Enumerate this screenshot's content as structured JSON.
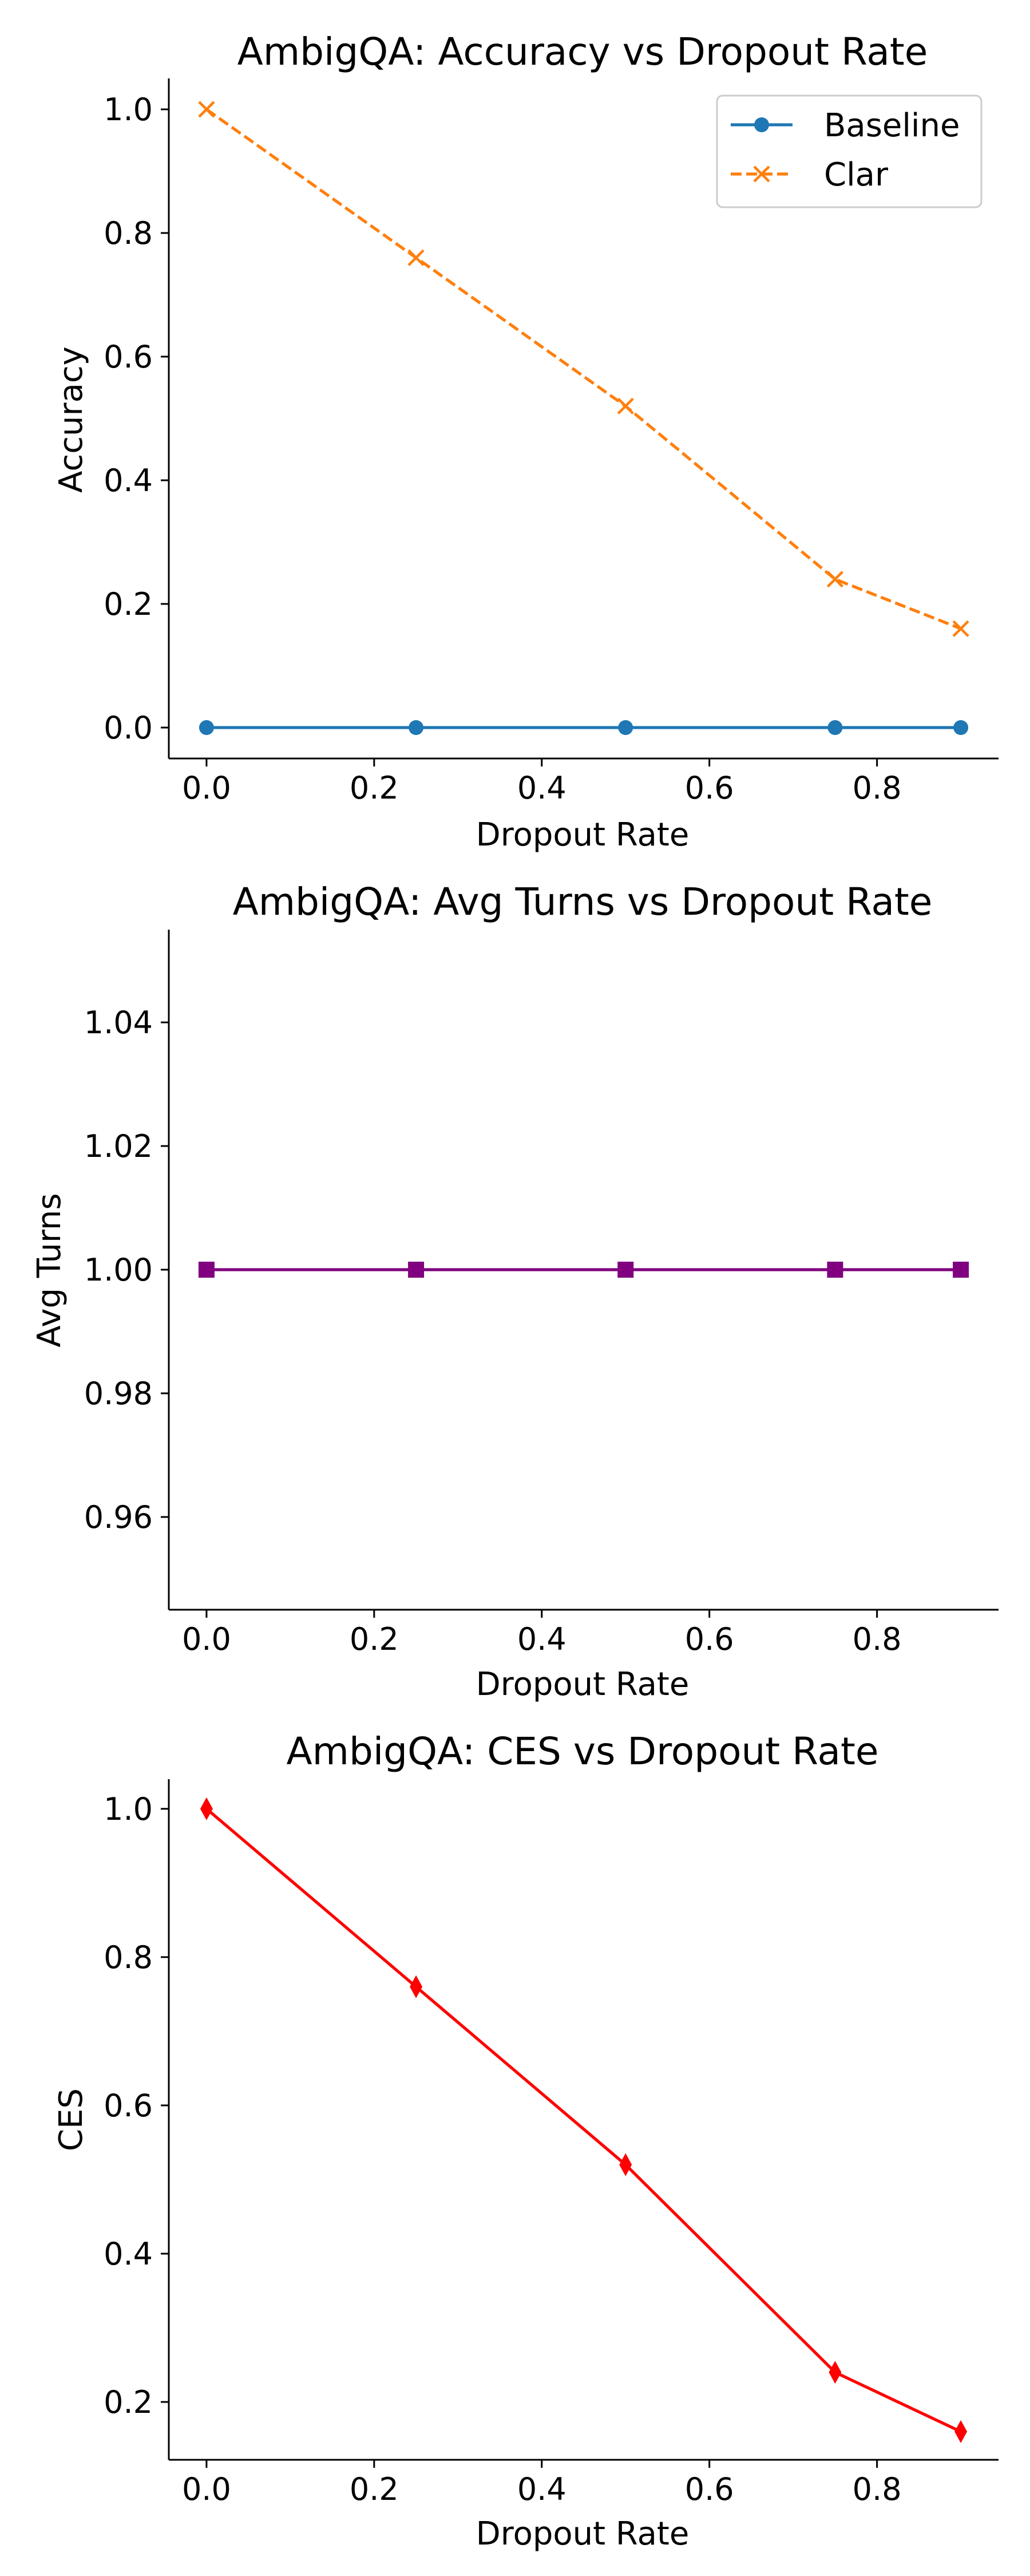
{
  "chart_data": [
    {
      "type": "line",
      "title": "AmbigQA: Accuracy vs Dropout Rate",
      "xlabel": "Dropout Rate",
      "ylabel": "Accuracy",
      "x": [
        0.0,
        0.25,
        0.5,
        0.75,
        0.9
      ],
      "xlim": [
        -0.045,
        0.945
      ],
      "ylim": [
        -0.05,
        1.05
      ],
      "xticks": [
        0.0,
        0.2,
        0.4,
        0.6,
        0.8
      ],
      "xtick_labels": [
        "0.0",
        "0.2",
        "0.4",
        "0.6",
        "0.8"
      ],
      "yticks": [
        0.0,
        0.2,
        0.4,
        0.6,
        0.8,
        1.0
      ],
      "ytick_labels": [
        "0.0",
        "0.2",
        "0.4",
        "0.6",
        "0.8",
        "1.0"
      ],
      "grid": false,
      "legend": "top-right",
      "series": [
        {
          "name": "Baseline",
          "values": [
            0.0,
            0.0,
            0.0,
            0.0,
            0.0
          ],
          "color": "#1f77b4",
          "marker": "circle",
          "linestyle": "solid"
        },
        {
          "name": "Clar",
          "values": [
            1.0,
            0.76,
            0.52,
            0.24,
            0.16
          ],
          "color": "#ff7f0e",
          "marker": "x",
          "linestyle": "dashed"
        }
      ]
    },
    {
      "type": "line",
      "title": "AmbigQA: Avg Turns vs Dropout Rate",
      "xlabel": "Dropout Rate",
      "ylabel": "Avg Turns",
      "x": [
        0.0,
        0.25,
        0.5,
        0.75,
        0.9
      ],
      "xlim": [
        -0.045,
        0.945
      ],
      "ylim": [
        0.945,
        1.055
      ],
      "xticks": [
        0.0,
        0.2,
        0.4,
        0.6,
        0.8
      ],
      "xtick_labels": [
        "0.0",
        "0.2",
        "0.4",
        "0.6",
        "0.8"
      ],
      "yticks": [
        0.96,
        0.98,
        1.0,
        1.02,
        1.04
      ],
      "ytick_labels": [
        "0.96",
        "0.98",
        "1.00",
        "1.02",
        "1.04"
      ],
      "grid": false,
      "series": [
        {
          "values": [
            1.0,
            1.0,
            1.0,
            1.0,
            1.0
          ],
          "color": "#800080",
          "marker": "square",
          "linestyle": "solid"
        }
      ]
    },
    {
      "type": "line",
      "title": "AmbigQA: CES vs Dropout Rate",
      "xlabel": "Dropout Rate",
      "ylabel": "CES",
      "x": [
        0.0,
        0.25,
        0.5,
        0.75,
        0.9
      ],
      "xlim": [
        -0.045,
        0.945
      ],
      "ylim": [
        0.122,
        1.04
      ],
      "xticks": [
        0.0,
        0.2,
        0.4,
        0.6,
        0.8
      ],
      "xtick_labels": [
        "0.0",
        "0.2",
        "0.4",
        "0.6",
        "0.8"
      ],
      "yticks": [
        0.2,
        0.4,
        0.6,
        0.8,
        1.0
      ],
      "ytick_labels": [
        "0.2",
        "0.4",
        "0.6",
        "0.8",
        "1.0"
      ],
      "grid": false,
      "series": [
        {
          "values": [
            1.0,
            0.76,
            0.52,
            0.24,
            0.16
          ],
          "color": "#ff0000",
          "marker": "diamond",
          "linestyle": "solid"
        }
      ]
    }
  ]
}
